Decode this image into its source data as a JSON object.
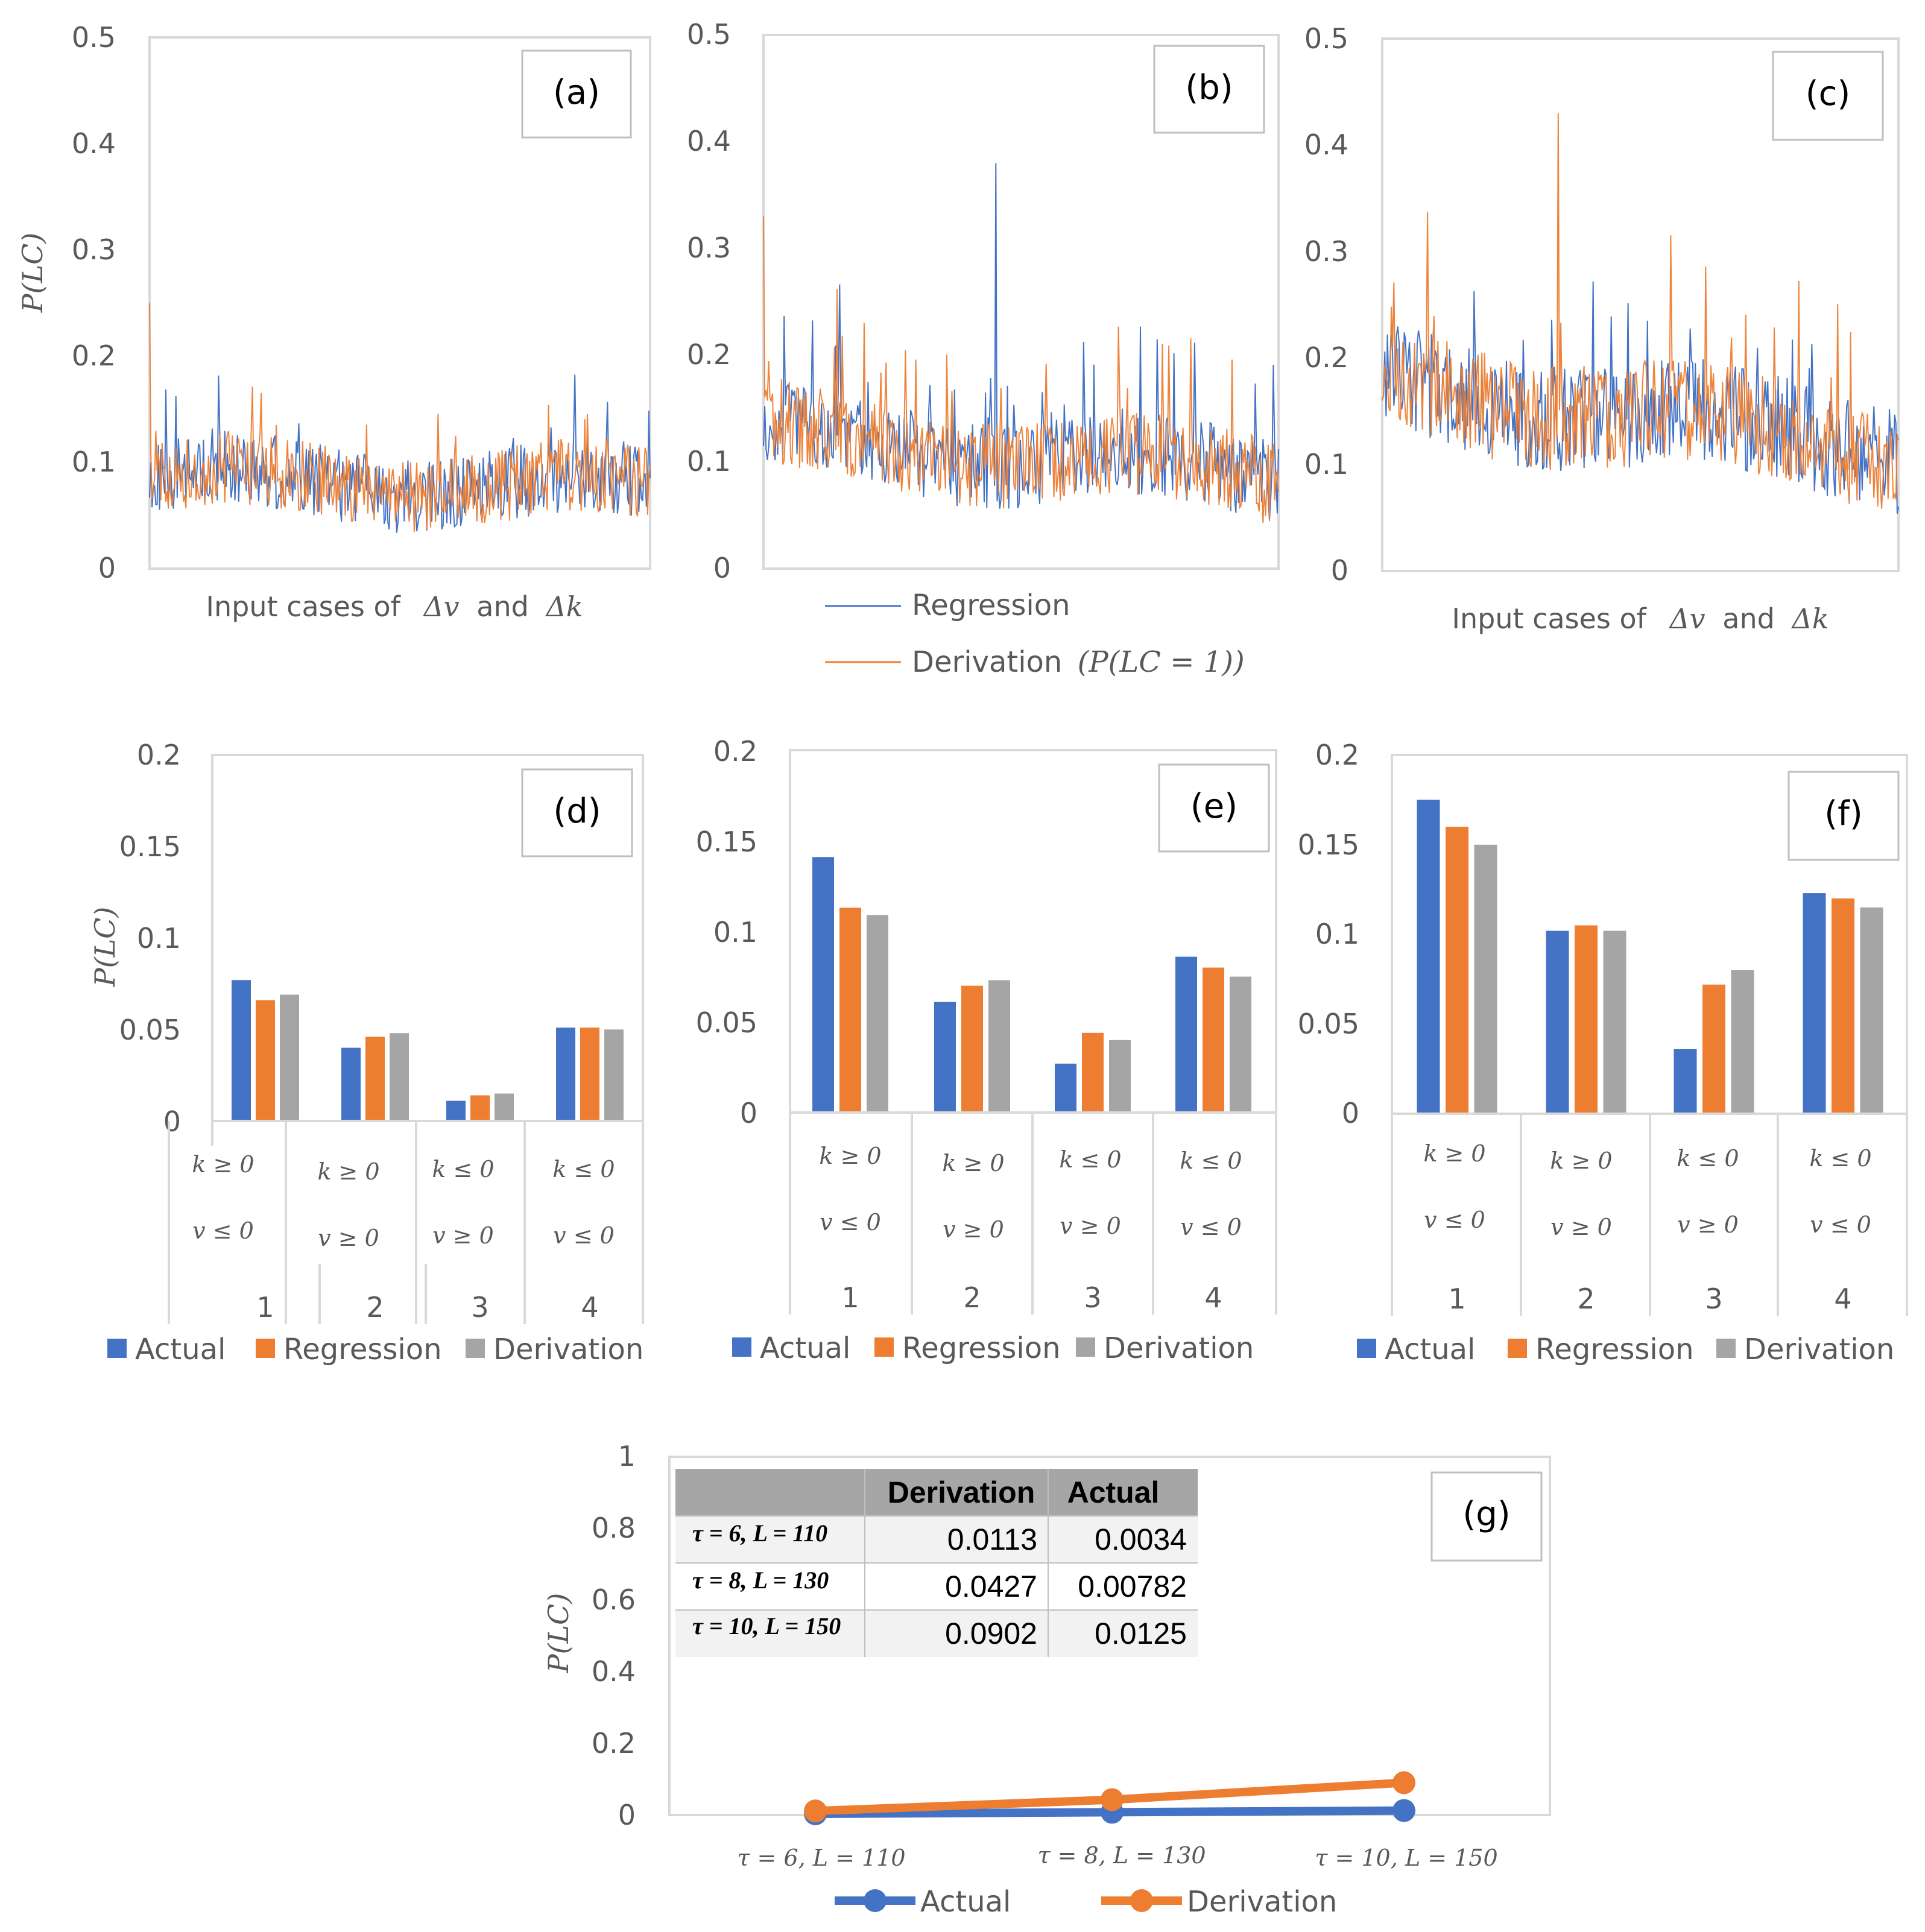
{
  "colors": {
    "actual": "#4472C4",
    "regression": "#ED7D31",
    "derivation": "#A5A5A5",
    "grid": "#D9D9D9",
    "text": "#595959"
  },
  "common": {
    "y_label": "P(LC)"
  },
  "line_panels": {
    "x_label_text": "Input cases of",
    "x_label_dv": "Δv",
    "x_label_and": "and",
    "x_label_dk": "Δk",
    "legend": {
      "regression": "Regression",
      "derivation": "Derivation",
      "derivation_math": "(P(LC = 1))"
    }
  },
  "bar_panels": {
    "legend": [
      "Actual",
      "Regression",
      "Derivation"
    ],
    "conditions": [
      {
        "k": "k ≥ 0",
        "v": "v ≤ 0"
      },
      {
        "k": "k ≥ 0",
        "v": "v ≥ 0"
      },
      {
        "k": "k ≤ 0",
        "v": "v ≥ 0"
      },
      {
        "k": "k ≤ 0",
        "v": "v ≤ 0"
      }
    ]
  },
  "panel_g_table": {
    "header": [
      "",
      "Derivation",
      "Actual"
    ],
    "rows": [
      {
        "label": "τ = 6, L = 110",
        "derivation": "0.0113",
        "actual": "0.0034"
      },
      {
        "label": "τ = 8, L = 130",
        "derivation": "0.0427",
        "actual": "0.00782"
      },
      {
        "label": "τ = 10, L = 150",
        "derivation": "0.0902",
        "actual": "0.0125"
      }
    ]
  },
  "chart_data": [
    {
      "panel": "(a)",
      "type": "line",
      "title": "",
      "xlabel": "Input cases of Δv and Δk",
      "ylabel": "P(LC)",
      "ylim": [
        0,
        0.5
      ],
      "yticks": [
        "0",
        "0.1",
        "0.2",
        "0.3",
        "0.4",
        "0.5"
      ],
      "n_points": 400,
      "seed": 11,
      "base_start": 0.085,
      "base_end": 0.075,
      "spread": 0.035,
      "spike_prob": 0.04,
      "spike_amp": 0.09,
      "first_orange": 0.25,
      "series": [
        {
          "name": "Regression",
          "description": "noisy ~0.04–0.19, mean ~0.08"
        },
        {
          "name": "Derivation (P(LC = 1))",
          "description": "noisy ~0.02–0.25, mean ~0.08"
        }
      ]
    },
    {
      "panel": "(b)",
      "type": "line",
      "title": "",
      "xlabel": "",
      "ylabel": "P(LC)",
      "ylim": [
        0,
        0.5
      ],
      "yticks": [
        "0",
        "0.1",
        "0.2",
        "0.3",
        "0.4",
        "0.5"
      ],
      "n_points": 400,
      "seed": 23,
      "base_start": 0.125,
      "base_end": 0.085,
      "spread": 0.04,
      "spike_prob": 0.05,
      "spike_amp": 0.11,
      "first_orange": 0.33,
      "peak_blue": {
        "at": 0.45,
        "value": 0.38
      },
      "series": [
        {
          "name": "Regression",
          "description": "noisy ~0.03–0.38, mean ~0.11"
        },
        {
          "name": "Derivation (P(LC = 1))",
          "description": "noisy ~0.03–0.33, mean ~0.11"
        }
      ]
    },
    {
      "panel": "(c)",
      "type": "line",
      "title": "",
      "xlabel": "Input cases of Δv and Δk",
      "ylabel": "P(LC)",
      "ylim": [
        0,
        0.5
      ],
      "yticks": [
        "0",
        "0.1",
        "0.2",
        "0.3",
        "0.4",
        "0.5"
      ],
      "n_points": 400,
      "seed": 37,
      "base_start": 0.175,
      "base_end": 0.115,
      "spread": 0.05,
      "spike_prob": 0.05,
      "spike_amp": 0.13,
      "first_orange": 0.16,
      "peak_orange": {
        "at": 0.34,
        "value": 0.43
      },
      "series": [
        {
          "name": "Regression",
          "description": "noisy ~0.04–0.38, mean ~0.15"
        },
        {
          "name": "Derivation (P(LC = 1))",
          "description": "noisy ~0.02–0.43, mean ~0.15"
        }
      ]
    },
    {
      "panel": "(d)",
      "type": "bar",
      "categories": [
        "1",
        "2",
        "3",
        "4"
      ],
      "ylim": [
        0,
        0.2
      ],
      "yticks": [
        "0",
        "0.05",
        "0.1",
        "0.15",
        "0.2"
      ],
      "ylabel": "P(LC)",
      "series": [
        {
          "name": "Actual",
          "values": [
            0.077,
            0.04,
            0.011,
            0.051
          ]
        },
        {
          "name": "Regression",
          "values": [
            0.066,
            0.046,
            0.014,
            0.051
          ]
        },
        {
          "name": "Derivation",
          "values": [
            0.069,
            0.048,
            0.015,
            0.05
          ]
        }
      ]
    },
    {
      "panel": "(e)",
      "type": "bar",
      "categories": [
        "1",
        "2",
        "3",
        "4"
      ],
      "ylim": [
        0,
        0.2
      ],
      "yticks": [
        "0",
        "0.05",
        "0.1",
        "0.15",
        "0.2"
      ],
      "ylabel": "",
      "series": [
        {
          "name": "Actual",
          "values": [
            0.141,
            0.061,
            0.027,
            0.086
          ]
        },
        {
          "name": "Regression",
          "values": [
            0.113,
            0.07,
            0.044,
            0.08
          ]
        },
        {
          "name": "Derivation",
          "values": [
            0.109,
            0.073,
            0.04,
            0.075
          ]
        }
      ]
    },
    {
      "panel": "(f)",
      "type": "bar",
      "categories": [
        "1",
        "2",
        "3",
        "4"
      ],
      "ylim": [
        0,
        0.2
      ],
      "yticks": [
        "0",
        "0.05",
        "0.1",
        "0.15",
        "0.2"
      ],
      "ylabel": "",
      "series": [
        {
          "name": "Actual",
          "values": [
            0.175,
            0.102,
            0.036,
            0.123
          ]
        },
        {
          "name": "Regression",
          "values": [
            0.16,
            0.105,
            0.072,
            0.12
          ]
        },
        {
          "name": "Derivation",
          "values": [
            0.15,
            0.102,
            0.08,
            0.115
          ]
        }
      ]
    },
    {
      "panel": "(g)",
      "type": "line",
      "categories": [
        "τ = 6, L = 110",
        "τ = 8, L = 130",
        "τ = 10, L = 150"
      ],
      "ylim": [
        0,
        1
      ],
      "yticks": [
        "0",
        "0.2",
        "0.4",
        "0.6",
        "0.8",
        "1"
      ],
      "ylabel": "P(LC)",
      "series": [
        {
          "name": "Actual",
          "values": [
            0.0034,
            0.00782,
            0.0125
          ]
        },
        {
          "name": "Derivation",
          "values": [
            0.0113,
            0.0427,
            0.0902
          ]
        }
      ]
    }
  ]
}
